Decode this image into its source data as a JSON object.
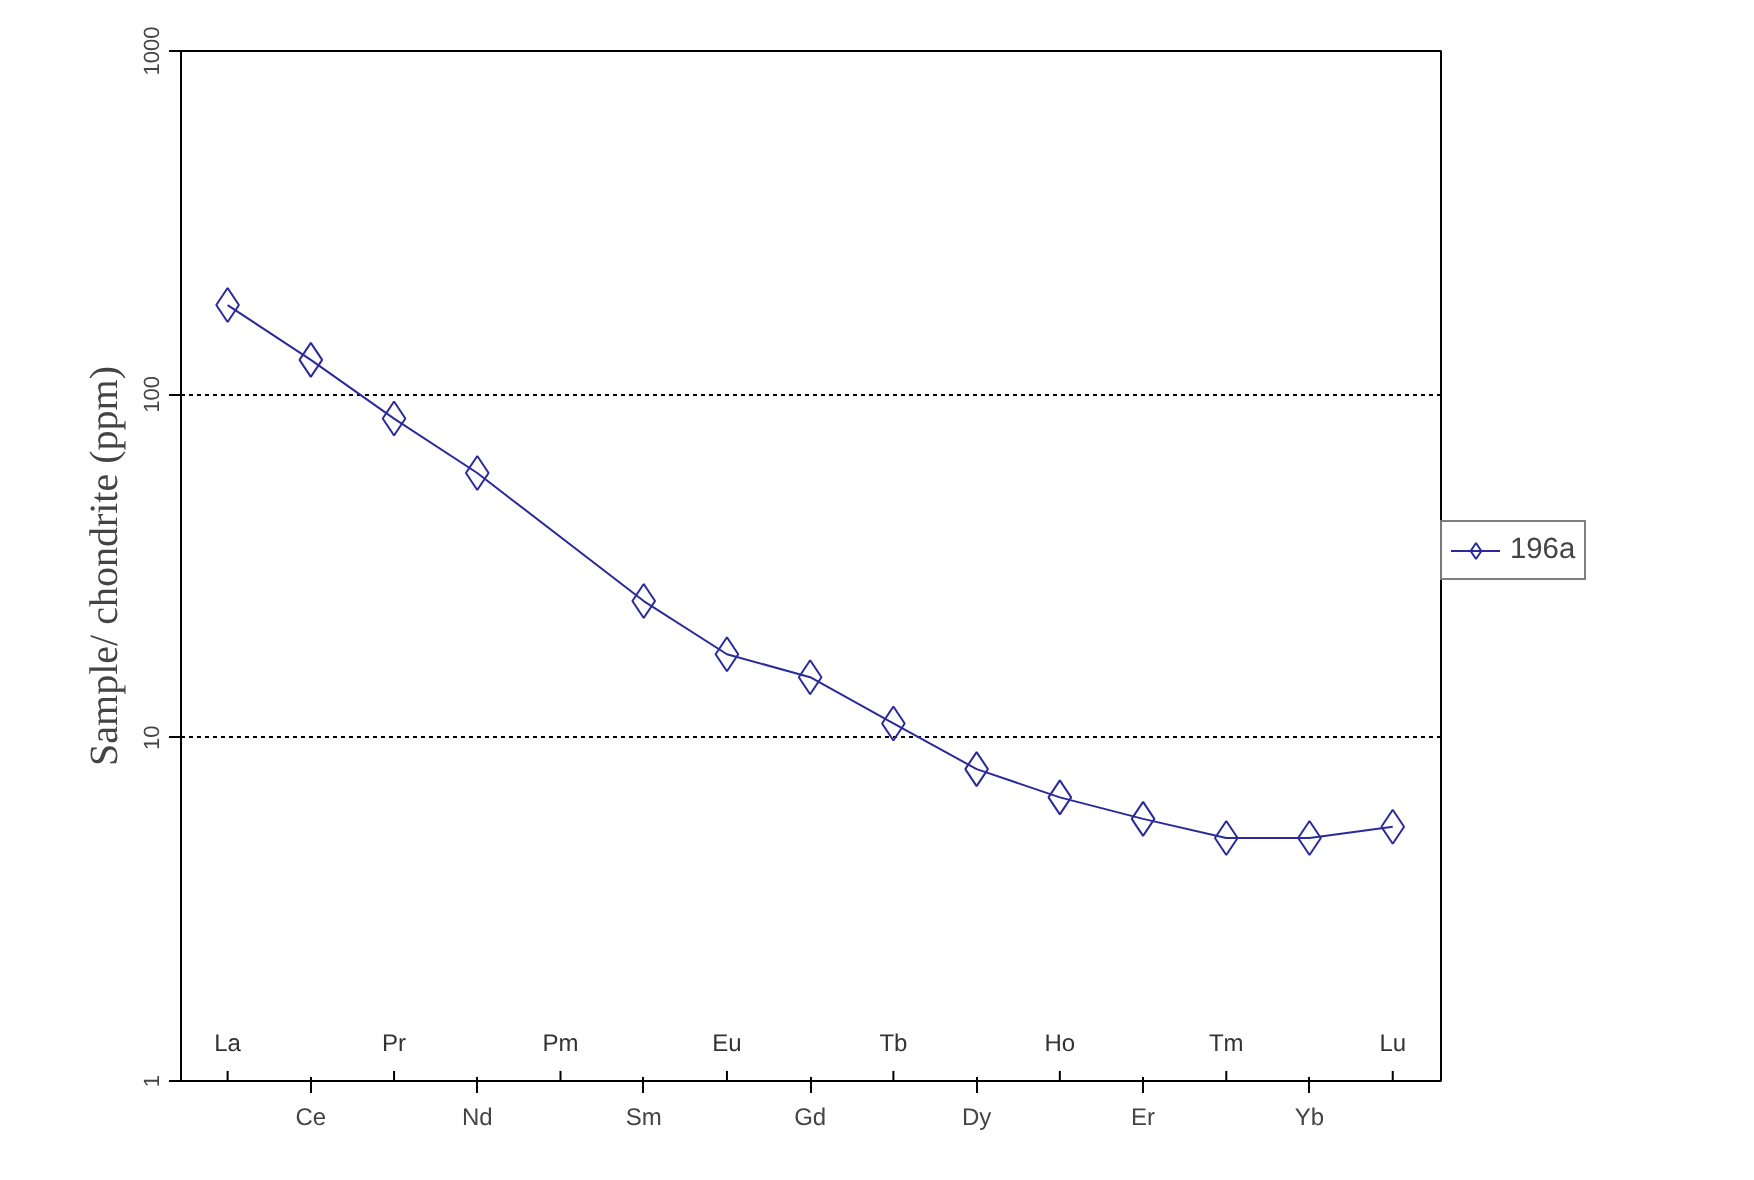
{
  "chart_data": {
    "type": "line",
    "categories": [
      "La",
      "Ce",
      "Pr",
      "Nd",
      "Pm",
      "Sm",
      "Eu",
      "Gd",
      "Tb",
      "Dy",
      "Ho",
      "Er",
      "Tm",
      "Yb",
      "Lu"
    ],
    "series": [
      {
        "name": "196a",
        "color": "#2a2a9a",
        "values": [
          182,
          126,
          85,
          59,
          null,
          25,
          17.5,
          15,
          11,
          8.1,
          6.7,
          5.8,
          5.1,
          5.1,
          5.5
        ]
      }
    ],
    "ylabel": "Sample/ chondrite (ppm)",
    "log": true,
    "ylim": [
      1,
      1000
    ],
    "yticks": [
      1,
      10,
      100,
      1000
    ],
    "grid": "y",
    "legend": "right",
    "marker": "diamond",
    "line_style": "solid"
  }
}
